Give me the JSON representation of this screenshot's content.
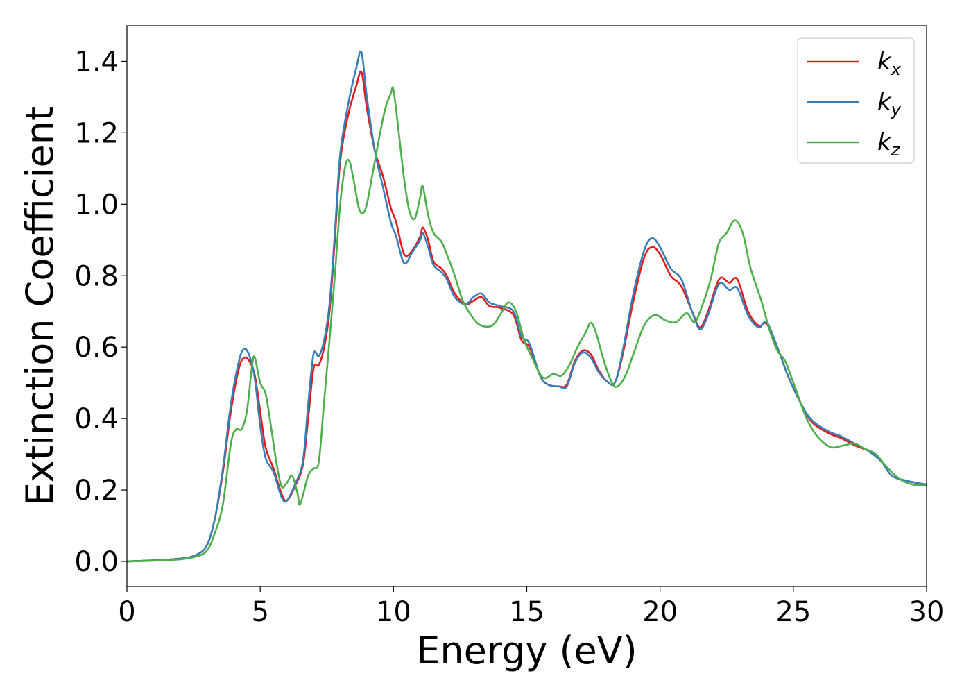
{
  "chart_data": {
    "type": "line",
    "xlabel": "Energy (eV)",
    "ylabel": "Extinction Coefficient",
    "xlim": [
      0,
      30
    ],
    "ylim": [
      -0.07,
      1.5
    ],
    "xticks": [
      0,
      5,
      10,
      15,
      20,
      25,
      30
    ],
    "xtick_labels": [
      "0",
      "5",
      "10",
      "15",
      "20",
      "25",
      "30"
    ],
    "yticks": [
      0.0,
      0.2,
      0.4,
      0.6,
      0.8,
      1.0,
      1.2,
      1.4
    ],
    "ytick_labels": [
      "0.0",
      "0.2",
      "0.4",
      "0.6",
      "0.8",
      "1.0",
      "1.2",
      "1.4"
    ],
    "grid": false,
    "legend_position": "top-right",
    "series": [
      {
        "name": "k",
        "subscript": "x",
        "color": "#e41a1c",
        "points": [
          [
            0,
            0
          ],
          [
            1,
            0.003
          ],
          [
            2,
            0.008
          ],
          [
            2.6,
            0.018
          ],
          [
            3,
            0.045
          ],
          [
            3.3,
            0.12
          ],
          [
            3.6,
            0.25
          ],
          [
            3.9,
            0.42
          ],
          [
            4.2,
            0.54
          ],
          [
            4.4,
            0.57
          ],
          [
            4.6,
            0.56
          ],
          [
            4.8,
            0.52
          ],
          [
            5.0,
            0.42
          ],
          [
            5.2,
            0.32
          ],
          [
            5.5,
            0.26
          ],
          [
            5.8,
            0.19
          ],
          [
            6.0,
            0.17
          ],
          [
            6.3,
            0.21
          ],
          [
            6.6,
            0.27
          ],
          [
            6.8,
            0.4
          ],
          [
            7.0,
            0.54
          ],
          [
            7.2,
            0.55
          ],
          [
            7.4,
            0.6
          ],
          [
            7.6,
            0.7
          ],
          [
            7.8,
            0.9
          ],
          [
            8.0,
            1.12
          ],
          [
            8.3,
            1.25
          ],
          [
            8.6,
            1.33
          ],
          [
            8.8,
            1.37
          ],
          [
            9.0,
            1.27
          ],
          [
            9.3,
            1.15
          ],
          [
            9.6,
            1.08
          ],
          [
            9.9,
            0.99
          ],
          [
            10.1,
            0.95
          ],
          [
            10.4,
            0.86
          ],
          [
            10.7,
            0.87
          ],
          [
            11.0,
            0.91
          ],
          [
            11.1,
            0.935
          ],
          [
            11.3,
            0.9
          ],
          [
            11.5,
            0.84
          ],
          [
            11.8,
            0.82
          ],
          [
            12.0,
            0.8
          ],
          [
            12.3,
            0.75
          ],
          [
            12.7,
            0.72
          ],
          [
            13.0,
            0.73
          ],
          [
            13.3,
            0.74
          ],
          [
            13.6,
            0.715
          ],
          [
            14.0,
            0.71
          ],
          [
            14.5,
            0.69
          ],
          [
            14.8,
            0.62
          ],
          [
            15.1,
            0.6
          ],
          [
            15.5,
            0.52
          ],
          [
            15.8,
            0.495
          ],
          [
            16.2,
            0.49
          ],
          [
            16.5,
            0.495
          ],
          [
            16.8,
            0.56
          ],
          [
            17.1,
            0.59
          ],
          [
            17.4,
            0.58
          ],
          [
            17.7,
            0.535
          ],
          [
            18.0,
            0.505
          ],
          [
            18.3,
            0.5
          ],
          [
            18.6,
            0.58
          ],
          [
            19.0,
            0.73
          ],
          [
            19.4,
            0.85
          ],
          [
            19.7,
            0.88
          ],
          [
            20.0,
            0.86
          ],
          [
            20.4,
            0.8
          ],
          [
            20.8,
            0.77
          ],
          [
            21.2,
            0.7
          ],
          [
            21.5,
            0.655
          ],
          [
            21.8,
            0.7
          ],
          [
            22.1,
            0.77
          ],
          [
            22.3,
            0.795
          ],
          [
            22.6,
            0.78
          ],
          [
            22.9,
            0.79
          ],
          [
            23.3,
            0.7
          ],
          [
            23.7,
            0.66
          ],
          [
            24.0,
            0.665
          ],
          [
            24.4,
            0.6
          ],
          [
            24.8,
            0.52
          ],
          [
            25.3,
            0.44
          ],
          [
            25.7,
            0.39
          ],
          [
            26.3,
            0.36
          ],
          [
            26.8,
            0.345
          ],
          [
            27.3,
            0.325
          ],
          [
            27.8,
            0.31
          ],
          [
            28.3,
            0.28
          ],
          [
            28.7,
            0.24
          ],
          [
            29.3,
            0.225
          ],
          [
            30,
            0.215
          ]
        ]
      },
      {
        "name": "k",
        "subscript": "y",
        "color": "#377eb8",
        "points": [
          [
            0,
            0
          ],
          [
            1,
            0.003
          ],
          [
            2,
            0.008
          ],
          [
            2.6,
            0.018
          ],
          [
            3,
            0.045
          ],
          [
            3.3,
            0.12
          ],
          [
            3.6,
            0.26
          ],
          [
            3.9,
            0.44
          ],
          [
            4.2,
            0.56
          ],
          [
            4.4,
            0.595
          ],
          [
            4.6,
            0.575
          ],
          [
            4.8,
            0.51
          ],
          [
            5.0,
            0.38
          ],
          [
            5.2,
            0.29
          ],
          [
            5.5,
            0.25
          ],
          [
            5.8,
            0.18
          ],
          [
            6.0,
            0.17
          ],
          [
            6.3,
            0.215
          ],
          [
            6.6,
            0.28
          ],
          [
            6.8,
            0.44
          ],
          [
            7.0,
            0.58
          ],
          [
            7.2,
            0.575
          ],
          [
            7.4,
            0.62
          ],
          [
            7.6,
            0.72
          ],
          [
            7.8,
            0.92
          ],
          [
            8.0,
            1.14
          ],
          [
            8.3,
            1.28
          ],
          [
            8.6,
            1.38
          ],
          [
            8.8,
            1.425
          ],
          [
            9.0,
            1.3
          ],
          [
            9.3,
            1.15
          ],
          [
            9.6,
            1.05
          ],
          [
            9.9,
            0.95
          ],
          [
            10.1,
            0.91
          ],
          [
            10.4,
            0.835
          ],
          [
            10.7,
            0.865
          ],
          [
            11.0,
            0.9
          ],
          [
            11.1,
            0.92
          ],
          [
            11.3,
            0.88
          ],
          [
            11.5,
            0.83
          ],
          [
            11.8,
            0.81
          ],
          [
            12.0,
            0.79
          ],
          [
            12.3,
            0.74
          ],
          [
            12.7,
            0.72
          ],
          [
            13.0,
            0.74
          ],
          [
            13.3,
            0.75
          ],
          [
            13.6,
            0.725
          ],
          [
            14.0,
            0.715
          ],
          [
            14.5,
            0.7
          ],
          [
            14.8,
            0.63
          ],
          [
            15.1,
            0.61
          ],
          [
            15.5,
            0.52
          ],
          [
            15.8,
            0.495
          ],
          [
            16.2,
            0.49
          ],
          [
            16.5,
            0.49
          ],
          [
            16.8,
            0.555
          ],
          [
            17.1,
            0.585
          ],
          [
            17.4,
            0.57
          ],
          [
            17.7,
            0.53
          ],
          [
            18.0,
            0.505
          ],
          [
            18.3,
            0.5
          ],
          [
            18.6,
            0.59
          ],
          [
            19.0,
            0.75
          ],
          [
            19.4,
            0.87
          ],
          [
            19.7,
            0.905
          ],
          [
            20.0,
            0.88
          ],
          [
            20.4,
            0.82
          ],
          [
            20.8,
            0.79
          ],
          [
            21.2,
            0.7
          ],
          [
            21.5,
            0.65
          ],
          [
            21.8,
            0.69
          ],
          [
            22.1,
            0.76
          ],
          [
            22.3,
            0.78
          ],
          [
            22.6,
            0.76
          ],
          [
            22.9,
            0.765
          ],
          [
            23.3,
            0.69
          ],
          [
            23.7,
            0.655
          ],
          [
            24.0,
            0.67
          ],
          [
            24.4,
            0.6
          ],
          [
            24.8,
            0.52
          ],
          [
            25.3,
            0.44
          ],
          [
            25.7,
            0.395
          ],
          [
            26.3,
            0.365
          ],
          [
            26.8,
            0.35
          ],
          [
            27.3,
            0.33
          ],
          [
            27.8,
            0.31
          ],
          [
            28.3,
            0.28
          ],
          [
            28.7,
            0.24
          ],
          [
            29.3,
            0.225
          ],
          [
            30,
            0.215
          ]
        ]
      },
      {
        "name": "k",
        "subscript": "z",
        "color": "#4daf4a",
        "points": [
          [
            0,
            0
          ],
          [
            1,
            0.002
          ],
          [
            2,
            0.006
          ],
          [
            2.6,
            0.014
          ],
          [
            3,
            0.03
          ],
          [
            3.3,
            0.08
          ],
          [
            3.6,
            0.16
          ],
          [
            3.9,
            0.33
          ],
          [
            4.1,
            0.37
          ],
          [
            4.3,
            0.37
          ],
          [
            4.5,
            0.42
          ],
          [
            4.7,
            0.55
          ],
          [
            4.8,
            0.57
          ],
          [
            5.0,
            0.5
          ],
          [
            5.2,
            0.47
          ],
          [
            5.4,
            0.38
          ],
          [
            5.6,
            0.28
          ],
          [
            5.8,
            0.21
          ],
          [
            6.0,
            0.22
          ],
          [
            6.2,
            0.24
          ],
          [
            6.4,
            0.19
          ],
          [
            6.5,
            0.16
          ],
          [
            6.8,
            0.24
          ],
          [
            7.0,
            0.26
          ],
          [
            7.2,
            0.28
          ],
          [
            7.4,
            0.45
          ],
          [
            7.6,
            0.62
          ],
          [
            7.8,
            0.8
          ],
          [
            8.0,
            1.0
          ],
          [
            8.2,
            1.11
          ],
          [
            8.35,
            1.12
          ],
          [
            8.5,
            1.07
          ],
          [
            8.7,
            0.99
          ],
          [
            8.85,
            0.975
          ],
          [
            9.0,
            1.0
          ],
          [
            9.2,
            1.08
          ],
          [
            9.5,
            1.2
          ],
          [
            9.7,
            1.27
          ],
          [
            9.9,
            1.31
          ],
          [
            10.0,
            1.32
          ],
          [
            10.2,
            1.2
          ],
          [
            10.4,
            1.07
          ],
          [
            10.6,
            0.98
          ],
          [
            10.8,
            0.96
          ],
          [
            11.0,
            1.02
          ],
          [
            11.1,
            1.05
          ],
          [
            11.3,
            0.97
          ],
          [
            11.5,
            0.92
          ],
          [
            11.8,
            0.895
          ],
          [
            12.0,
            0.86
          ],
          [
            12.3,
            0.8
          ],
          [
            12.6,
            0.73
          ],
          [
            13.0,
            0.68
          ],
          [
            13.3,
            0.66
          ],
          [
            13.7,
            0.66
          ],
          [
            14.0,
            0.69
          ],
          [
            14.3,
            0.725
          ],
          [
            14.6,
            0.7
          ],
          [
            14.9,
            0.62
          ],
          [
            15.2,
            0.57
          ],
          [
            15.6,
            0.515
          ],
          [
            16.0,
            0.525
          ],
          [
            16.3,
            0.52
          ],
          [
            16.6,
            0.55
          ],
          [
            16.9,
            0.6
          ],
          [
            17.2,
            0.64
          ],
          [
            17.4,
            0.668
          ],
          [
            17.6,
            0.64
          ],
          [
            17.9,
            0.56
          ],
          [
            18.2,
            0.5
          ],
          [
            18.4,
            0.49
          ],
          [
            18.7,
            0.52
          ],
          [
            19.0,
            0.58
          ],
          [
            19.4,
            0.66
          ],
          [
            19.8,
            0.69
          ],
          [
            20.2,
            0.675
          ],
          [
            20.6,
            0.67
          ],
          [
            21.0,
            0.695
          ],
          [
            21.3,
            0.67
          ],
          [
            21.6,
            0.72
          ],
          [
            21.9,
            0.79
          ],
          [
            22.2,
            0.89
          ],
          [
            22.5,
            0.92
          ],
          [
            22.8,
            0.955
          ],
          [
            23.1,
            0.92
          ],
          [
            23.4,
            0.82
          ],
          [
            23.8,
            0.73
          ],
          [
            24.1,
            0.65
          ],
          [
            24.4,
            0.59
          ],
          [
            24.7,
            0.56
          ],
          [
            25.1,
            0.48
          ],
          [
            25.5,
            0.4
          ],
          [
            25.9,
            0.35
          ],
          [
            26.4,
            0.32
          ],
          [
            26.9,
            0.325
          ],
          [
            27.3,
            0.33
          ],
          [
            27.7,
            0.315
          ],
          [
            28.1,
            0.3
          ],
          [
            28.5,
            0.265
          ],
          [
            29.0,
            0.23
          ],
          [
            29.5,
            0.215
          ],
          [
            30,
            0.212
          ]
        ]
      }
    ]
  }
}
